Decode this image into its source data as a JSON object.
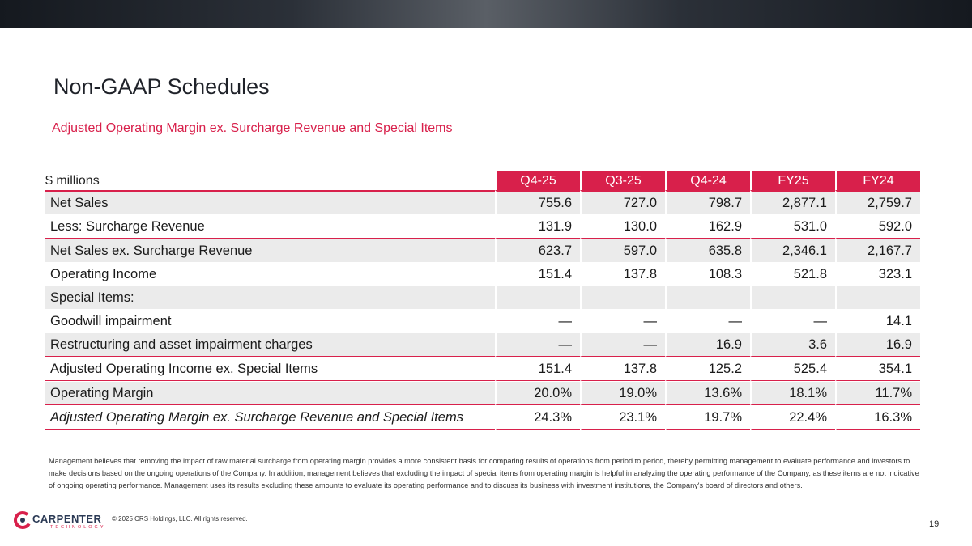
{
  "header": {
    "title": "Non-GAAP Schedules",
    "subtitle": "Adjusted Operating Margin ex. Surcharge Revenue and Special Items"
  },
  "table": {
    "units": "$ millions",
    "columns": [
      "Q4-25",
      "Q3-25",
      "Q4-24",
      "FY25",
      "FY24"
    ],
    "rows": [
      {
        "label": "Net Sales",
        "values": [
          "755.6",
          "727.0",
          "798.7",
          "2,877.1",
          "2,759.7"
        ]
      },
      {
        "label": "Less: Surcharge Revenue",
        "values": [
          "131.9",
          "130.0",
          "162.9",
          "531.0",
          "592.0"
        ]
      },
      {
        "label": "Net Sales ex. Surcharge Revenue",
        "values": [
          "623.7",
          "597.0",
          "635.8",
          "2,346.1",
          "2,167.7"
        ]
      },
      {
        "label": "Operating Income",
        "values": [
          "151.4",
          "137.8",
          "108.3",
          "521.8",
          "323.1"
        ]
      },
      {
        "label": "Special Items:",
        "values": [
          "",
          "",
          "",
          "",
          ""
        ]
      },
      {
        "label": "Goodwill impairment",
        "values": [
          "—",
          "—",
          "—",
          "—",
          "14.1"
        ]
      },
      {
        "label": "Restructuring and asset impairment charges",
        "values": [
          "—",
          "—",
          "16.9",
          "3.6",
          "16.9"
        ]
      },
      {
        "label": "Adjusted Operating Income ex. Special Items",
        "values": [
          "151.4",
          "137.8",
          "125.2",
          "525.4",
          "354.1"
        ]
      },
      {
        "label": "Operating Margin",
        "values": [
          "20.0%",
          "19.0%",
          "13.6%",
          "18.1%",
          "11.7%"
        ]
      },
      {
        "label": "Adjusted Operating Margin ex. Surcharge Revenue and Special Items",
        "values": [
          "24.3%",
          "23.1%",
          "19.7%",
          "22.4%",
          "16.3%"
        ]
      }
    ]
  },
  "footnote": "Management believes that removing the impact of raw material surcharge from operating margin provides a more consistent basis for comparing results of operations from period to period, thereby permitting management to evaluate performance and investors to make decisions based on the ongoing operations of the Company. In addition, management believes that excluding the impact of special items from operating margin is helpful in analyzing the operating performance of the Company, as these items are not indicative of ongoing operating performance. Management uses its results excluding these amounts to evaluate its operating performance and to discuss its business with investment institutions, the Company's board of directors and others.",
  "footer": {
    "logo_name": "CARPENTER",
    "logo_sub": "TECHNOLOGY",
    "copyright": "© 2025 CRS Holdings, LLC. All rights reserved.",
    "page_number": "19"
  },
  "colors": {
    "accent": "#d8204b",
    "shade": "#ebebeb",
    "topbar": "#2b3038"
  }
}
